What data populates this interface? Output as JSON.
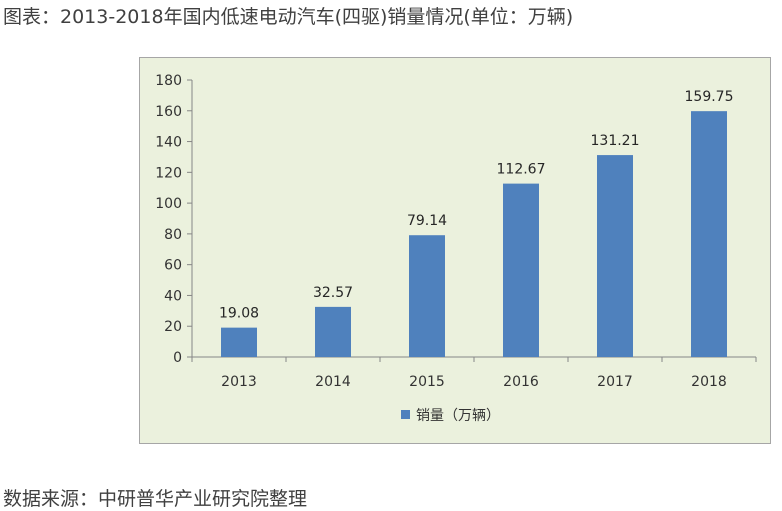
{
  "title": "图表：2013-2018年国内低速电动汽车(四驱)销量情况(单位：万辆)",
  "source": "数据来源：中研普华产业研究院整理",
  "colors": {
    "bar": "#4f81bd",
    "frame_background": "#ebf1dd",
    "frame_border": "#a6a6a6",
    "axis": "#868686"
  },
  "chart_data": {
    "type": "bar",
    "categories": [
      "2013",
      "2014",
      "2015",
      "2016",
      "2017",
      "2018"
    ],
    "series": [
      {
        "name": "销量（万辆）",
        "values": [
          19.08,
          32.57,
          79.14,
          112.67,
          131.21,
          159.75
        ]
      }
    ],
    "data_labels": [
      "19.08",
      "32.57",
      "79.14",
      "112.67",
      "131.21",
      "159.75"
    ],
    "y_ticks": [
      0,
      20,
      40,
      60,
      80,
      100,
      120,
      140,
      160,
      180
    ],
    "ylim": [
      0,
      180
    ],
    "grid": false,
    "legend_position": "bottom"
  }
}
